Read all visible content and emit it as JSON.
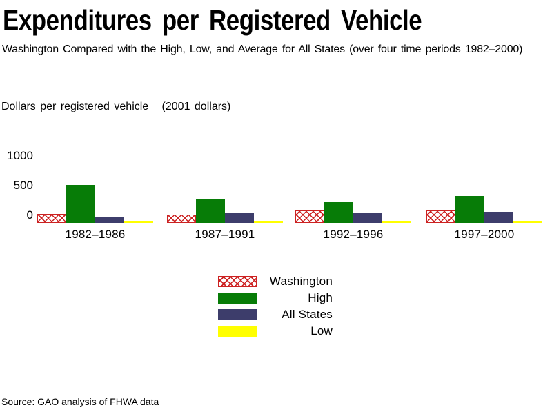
{
  "header": {
    "title": "Expenditures per Registered Vehicle",
    "subtitle": "Washington Compared with the High, Low, and Average for All States (over four time periods 1982–2000)"
  },
  "axis": {
    "y_title": "Dollars per registered vehicle   (2001 dollars)"
  },
  "chart_data": {
    "type": "bar",
    "title": "Expenditures per Registered Vehicle",
    "subtitle": "Washington Compared with the High, Low, and Average for All States (over four time periods 1982–2000)",
    "ylabel": "Dollars per registered vehicle (2001 dollars)",
    "xlabel": "",
    "categories": [
      "1982–1986",
      "1987–1991",
      "1992–1996",
      "1997–2000"
    ],
    "series": [
      {
        "name": "Washington",
        "key": "washington",
        "style": "red-crosshatch",
        "color": "#cc2222",
        "values": [
          130,
          120,
          185,
          185
        ]
      },
      {
        "name": "High",
        "key": "high",
        "style": "solid",
        "color": "#077c07",
        "values": [
          640,
          395,
          350,
          455
        ]
      },
      {
        "name": "All States",
        "key": "all_states",
        "style": "solid",
        "color": "#3d3d6b",
        "values": [
          105,
          165,
          175,
          185
        ]
      },
      {
        "name": "Low",
        "key": "low",
        "style": "solid",
        "color": "#ffff00",
        "values": [
          35,
          35,
          35,
          35
        ]
      }
    ],
    "yticks": [
      0,
      500,
      1000
    ],
    "ylim": [
      0,
      1000
    ],
    "grid": false,
    "axis_lines": false,
    "legend_position": "below-center",
    "colors": {
      "washington_red": "#cc2222",
      "high_green": "#077c07",
      "all_states_navy": "#3d3d6b",
      "low_yellow": "#ffff00",
      "background": "#ffffff",
      "text": "#000000"
    }
  },
  "legend": {
    "items": [
      {
        "label": "Washington",
        "key": "washington"
      },
      {
        "label": "High",
        "key": "high"
      },
      {
        "label": "All States",
        "key": "all_states"
      },
      {
        "label": "Low",
        "key": "low"
      }
    ]
  },
  "footer": {
    "source": "Source: GAO analysis of FHWA data"
  }
}
